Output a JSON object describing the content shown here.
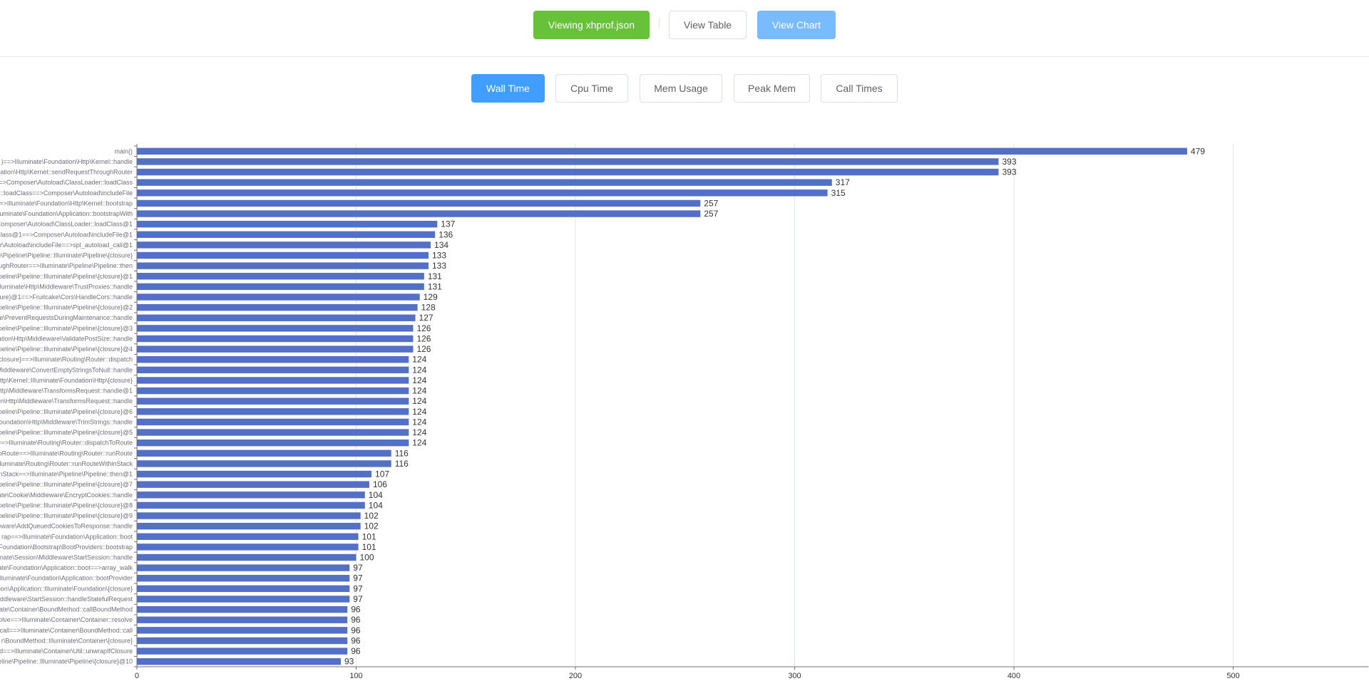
{
  "header": {
    "viewing_label": "Viewing xhprof.json",
    "view_table_label": "View Table",
    "view_chart_label": "View Chart"
  },
  "metric_tabs": [
    {
      "label": "Wall Time",
      "active": true
    },
    {
      "label": "Cpu Time",
      "active": false
    },
    {
      "label": "Mem Usage",
      "active": false
    },
    {
      "label": "Peak Mem",
      "active": false
    },
    {
      "label": "Call Times",
      "active": false
    }
  ],
  "colors": {
    "bar": "#5470c6",
    "success": "#67c23a",
    "primary": "#409eff",
    "primary_light": "#79bbff"
  },
  "chart_data": {
    "type": "bar",
    "orientation": "horizontal",
    "title": "",
    "xlabel": "",
    "ylabel": "",
    "xlim": [
      0,
      500
    ],
    "xticks": [
      0,
      100,
      200,
      300,
      400,
      500
    ],
    "grid": true,
    "categories": [
      "main()",
      ")==>Illuminate\\Foundation\\Http\\Kernel::handle",
      "dation\\Http\\Kernel::sendRequestThroughRouter",
      "==>Composer\\Autoload\\ClassLoader::loadClass",
      "::loadClass==>Composer\\Autoload\\includeFile",
      "==>Illuminate\\Foundation\\Http\\Kernel::bootstrap",
      "uminate\\Foundation\\Application::bootstrapWith",
      ">Composer\\Autoload\\ClassLoader::loadClass@1",
      "Class@1==>Composer\\Autoload\\includeFile@1",
      "r\\Autoload\\includeFile==>spl_autoload_call@1",
      "e\\Pipeline\\Pipeline::Illuminate\\Pipeline\\{closure}",
      "ughRouter==>Illuminate\\Pipeline\\Pipeline::then",
      "ipeline\\Pipeline::Illuminate\\Pipeline\\{closure}@1",
      "lluminate\\Http\\Middleware\\TrustProxies::handle",
      "osure}@1==>Fruitcake\\Cors\\HandleCors::handle",
      "ipeline\\Pipeline::Illuminate\\Pipeline\\{closure}@2",
      "are\\PreventRequestsDuringMaintenance::handle",
      "ipeline\\Pipeline::Illuminate\\Pipeline\\{closure}@3",
      "ation\\Http\\Middleware\\ValidatePostSize::handle",
      "ipeline\\Pipeline::Illuminate\\Pipeline\\{closure}@4",
      "closure}==>Illuminate\\Routing\\Router::dispatch",
      "Middleware\\ConvertEmptyStringsToNull::handle",
      "ttp\\Kernel::Illuminate\\Foundation\\Http\\{closure}",
      "Http\\Middleware\\TransformsRequest::handle@1",
      "on\\Http\\Middleware\\TransformsRequest::handle",
      "ipeline\\Pipeline::Illuminate\\Pipeline\\{closure}@6",
      "oundation\\Http\\Middleware\\TrimStrings::handle",
      "ipeline\\Pipeline::Illuminate\\Pipeline\\{closure}@5",
      "==>Illuminate\\Routing\\Router::dispatchToRoute",
      "oRoute==>Illuminate\\Routing\\Router::runRoute",
      "Illuminate\\Routing\\Router::runRouteWithinStack",
      "inStack==>Illuminate\\Pipeline\\Pipeline::then@1",
      "ipeline\\Pipeline::Illuminate\\Pipeline\\{closure}@7",
      "nate\\Cookie\\Middleware\\EncryptCookies::handle",
      "ipeline\\Pipeline::Illuminate\\Pipeline\\{closure}@8",
      "ipeline\\Pipeline::Illuminate\\Pipeline\\{closure}@9",
      "ldleware\\AddQueuedCookiesToResponse::handle",
      "rap==>Illuminate\\Foundation\\Application::boot",
      "Foundation\\Bootstrap\\BootProviders::bootstrap",
      "inate\\Session\\Middleware\\StartSession::handle",
      "ate\\Foundation\\Application::boot==>array_walk",
      "lluminate\\Foundation\\Application::bootProvider",
      "ion\\Application::Illuminate\\Foundation\\{closure}",
      "Middleware\\StartSession::handleStatefulRequest",
      "ate\\Container\\BoundMethod::callBoundMethod",
      "olve==>Illuminate\\Container\\Container::resolve",
      "call==>Illuminate\\Container\\BoundMethod::call",
      "r\\BoundMethod::Illuminate\\Container\\{closure}",
      "d==>Illuminate\\Container\\Util::unwrapIfClosure",
      "peline\\Pipeline::Illuminate\\Pipeline\\{closure}@10"
    ],
    "values": [
      479,
      393,
      393,
      317,
      315,
      257,
      257,
      137,
      136,
      134,
      133,
      133,
      131,
      131,
      129,
      128,
      127,
      126,
      126,
      126,
      124,
      124,
      124,
      124,
      124,
      124,
      124,
      124,
      124,
      116,
      116,
      107,
      106,
      104,
      104,
      102,
      102,
      101,
      101,
      100,
      97,
      97,
      97,
      97,
      96,
      96,
      96,
      96,
      96,
      93
    ]
  }
}
